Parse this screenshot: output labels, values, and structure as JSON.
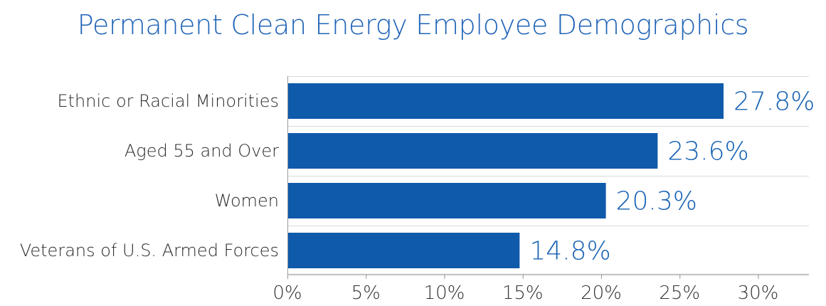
{
  "colors": {
    "title": "#1f63b6",
    "bar": "#0f5aab",
    "value_label": "#1561b3",
    "category_label": "#2a2a2a",
    "tick_label": "#333333",
    "axis": "#9a9a9a",
    "grid": "#d9d9d9"
  },
  "chart_data": {
    "type": "bar",
    "orientation": "horizontal",
    "title": "Permanent Clean Energy Employee Demographics",
    "categories": [
      "Ethnic or Racial Minorities",
      "Aged 55 and Over",
      "Women",
      "Veterans of U.S. Armed Forces"
    ],
    "values": [
      27.8,
      23.6,
      20.3,
      14.8
    ],
    "value_labels": [
      "27.8%",
      "23.6%",
      "20.3%",
      "14.8%"
    ],
    "xlim": [
      0,
      30
    ],
    "xticks": [
      0,
      5,
      10,
      15,
      20,
      25,
      30
    ],
    "xtick_labels": [
      "0%",
      "5%",
      "10%",
      "15%",
      "20%",
      "25%",
      "30%"
    ],
    "xlabel": "",
    "ylabel": "",
    "grid": true,
    "legend": "none"
  }
}
